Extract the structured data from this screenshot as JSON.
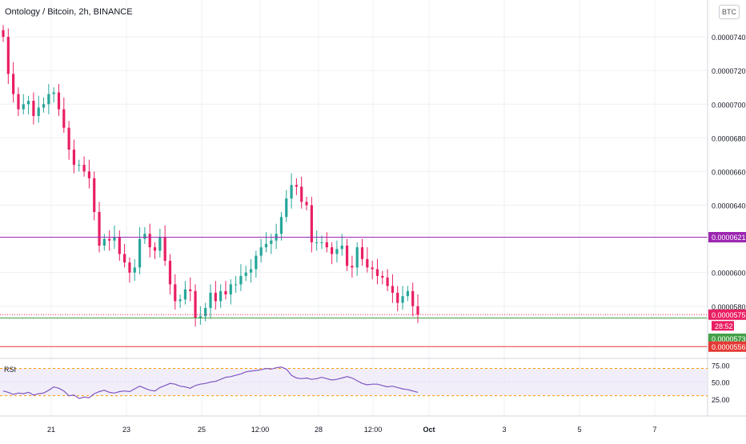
{
  "header": {
    "title": "Ontology / Bitcoin, 2h, BINANCE",
    "currency_badge": "BTC"
  },
  "chart_data": {
    "type": "candlestick",
    "symbol": "Ontology / Bitcoin",
    "interval": "2h",
    "exchange": "BINANCE",
    "y_axis": {
      "ticks": [
        "0.0000740",
        "0.0000720",
        "0.0000700",
        "0.0000680",
        "0.0000660",
        "0.0000640",
        "0.0000600",
        "0.0000580"
      ],
      "tick_values": [
        7.4e-05,
        7.2e-05,
        7e-05,
        6.8e-05,
        6.6e-05,
        6.4e-05,
        6e-05,
        5.8e-05
      ],
      "ylim": [
        5.49e-05,
        7.6e-05
      ]
    },
    "x_axis": {
      "labels": [
        "21",
        "23",
        "25",
        "12:00",
        "28",
        "12:00",
        "Oct",
        "3",
        "5",
        "7"
      ]
    },
    "close_series": [
      7.4e-05,
      7.18e-05,
      7.06e-05,
      6.97e-05,
      7e-05,
      7.02e-05,
      6.93e-05,
      6.98e-05,
      7e-05,
      7.06e-05,
      7.07e-05,
      6.97e-05,
      6.86e-05,
      6.73e-05,
      6.64e-05,
      6.64e-05,
      6.6e-05,
      6.56e-05,
      6.36e-05,
      6.16e-05,
      6.2e-05,
      6.19e-05,
      6.21e-05,
      6.11e-05,
      6.06e-05,
      6e-05,
      6.03e-05,
      6.2e-05,
      6.23e-05,
      6.15e-05,
      6.13e-05,
      6.21e-05,
      6.07e-05,
      5.93e-05,
      5.83e-05,
      5.84e-05,
      5.9e-05,
      5.89e-05,
      5.73e-05,
      5.74e-05,
      5.79e-05,
      5.88e-05,
      5.83e-05,
      5.89e-05,
      5.87e-05,
      5.93e-05,
      5.93e-05,
      5.98e-05,
      6e-05,
      6.02e-05,
      6.1e-05,
      6.15e-05,
      6.17e-05,
      6.19e-05,
      6.23e-05,
      6.33e-05,
      6.44e-05,
      6.52e-05,
      6.51e-05,
      6.42e-05,
      6.4e-05,
      6.18e-05,
      6.18e-05,
      6.18e-05,
      6.15e-05,
      6.11e-05,
      6.14e-05,
      6.16e-05,
      6.04e-05,
      6.03e-05,
      6.15e-05,
      6.08e-05,
      6.03e-05,
      6.02e-05,
      5.98e-05,
      5.97e-05,
      5.92e-05,
      5.88e-05,
      5.82e-05,
      5.86e-05,
      5.89e-05,
      5.8e-05,
      5.75e-05
    ],
    "levels": [
      {
        "label": "0.0000621",
        "value": 6.21e-05,
        "color": "#9c27b0"
      },
      {
        "label": "0.0000573",
        "value": 5.73e-05,
        "color": "#43a047"
      },
      {
        "label": "0.0000556",
        "value": 5.56e-05,
        "color": "#e53935"
      }
    ],
    "last_price": {
      "label": "0.0000575",
      "value": 5.75e-05,
      "countdown": "28:52",
      "color": "#e91e63"
    },
    "rsi": {
      "label": "RSI",
      "ticks": [
        "75.00",
        "50.00",
        "25.00"
      ],
      "tick_values": [
        75,
        50,
        25
      ],
      "band": [
        70,
        30
      ],
      "ylim": [
        5,
        80
      ],
      "values": [
        37,
        35,
        32,
        34,
        33,
        35,
        31,
        33,
        34,
        38,
        43,
        41,
        37,
        30,
        31,
        26,
        28,
        27,
        33,
        36,
        38,
        35,
        34,
        36,
        37,
        36,
        40,
        44,
        41,
        38,
        37,
        42,
        45,
        48,
        47,
        44,
        43,
        41,
        45,
        47,
        48,
        50,
        51,
        54,
        57,
        58,
        60,
        62,
        65,
        66,
        67,
        68,
        70,
        69,
        71,
        72,
        69,
        60,
        56,
        55,
        56,
        54,
        55,
        57,
        55,
        53,
        54,
        56,
        58,
        56,
        52,
        48,
        46,
        47,
        47,
        45,
        43,
        44,
        42,
        40,
        39,
        37,
        35
      ],
      "color": "#7e57c2"
    },
    "colors": {
      "up": "#26a69a",
      "down": "#e91e63"
    }
  }
}
